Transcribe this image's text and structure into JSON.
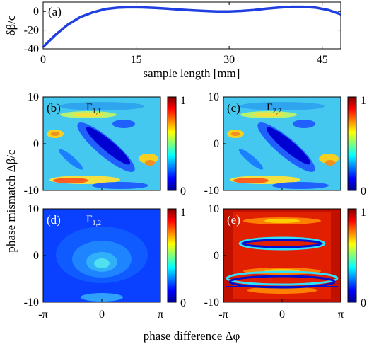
{
  "chart_data": [
    {
      "panel": "(a)",
      "type": "line",
      "xlabel": "sample length [mm]",
      "ylabel": "δβ/c",
      "xlim": [
        0,
        48
      ],
      "ylim": [
        -40,
        10
      ],
      "xticks": [
        "0",
        "15",
        "30",
        "45"
      ],
      "xtick_values": [
        0,
        15,
        30,
        45
      ],
      "yticks": [
        "0",
        "-20",
        "-40"
      ],
      "ytick_values": [
        0,
        -20,
        -40
      ],
      "line_color": "#1f3fe0",
      "series": [
        {
          "x": [
            0,
            2,
            4,
            6,
            8,
            10,
            12,
            14,
            16,
            18,
            20,
            22,
            24,
            26,
            28,
            30,
            32,
            34,
            36,
            38,
            40,
            42,
            44,
            46,
            48
          ],
          "values": [
            -38,
            -25,
            -14,
            -6,
            -1,
            2.5,
            4,
            4.5,
            4.3,
            3.8,
            3,
            2,
            1.2,
            0.5,
            0,
            0,
            0.5,
            1.5,
            3,
            4.2,
            5,
            5,
            4,
            1.5,
            -3
          ]
        }
      ]
    },
    {
      "panel": "(b)",
      "type": "heatmap",
      "label": "Γ",
      "label_sub": "1,1",
      "xlim": [
        -3.1416,
        3.1416
      ],
      "ylim": [
        -10,
        10
      ],
      "yticks": [
        "10",
        "0",
        "-10"
      ],
      "colorbar": {
        "min": 0,
        "max": 1,
        "ticks": [
          "1",
          "0"
        ]
      }
    },
    {
      "panel": "(c)",
      "type": "heatmap",
      "label": "Γ",
      "label_sub": "2,2",
      "xlim": [
        -3.1416,
        3.1416
      ],
      "ylim": [
        -10,
        10
      ],
      "yticks": [
        "10",
        "0",
        "-10"
      ],
      "colorbar": {
        "min": 0,
        "max": 1,
        "ticks": [
          "1",
          "0"
        ]
      }
    },
    {
      "panel": "(d)",
      "type": "heatmap",
      "label": "Γ",
      "label_sub": "1,2",
      "xlim": [
        -3.1416,
        3.1416
      ],
      "ylim": [
        -10,
        10
      ],
      "xticks": [
        "-π",
        "0",
        "π"
      ],
      "yticks": [
        "10",
        "0",
        "-10"
      ],
      "colorbar": {
        "min": 0,
        "max": 1,
        "ticks": [
          "1",
          "0"
        ]
      }
    },
    {
      "panel": "(e)",
      "type": "heatmap",
      "xlim": [
        -3.1416,
        3.1416
      ],
      "ylim": [
        -10,
        10
      ],
      "xticks": [
        "-π",
        "0",
        "π"
      ],
      "yticks": [
        "10",
        "0",
        "-10"
      ],
      "colorbar": {
        "min": 0,
        "max": 1,
        "ticks": [
          "1",
          "0"
        ]
      }
    }
  ],
  "shared": {
    "ylabel": "phase mismatch Δβ/c",
    "xlabel": "phase difference Δφ",
    "colormap": "jet"
  }
}
